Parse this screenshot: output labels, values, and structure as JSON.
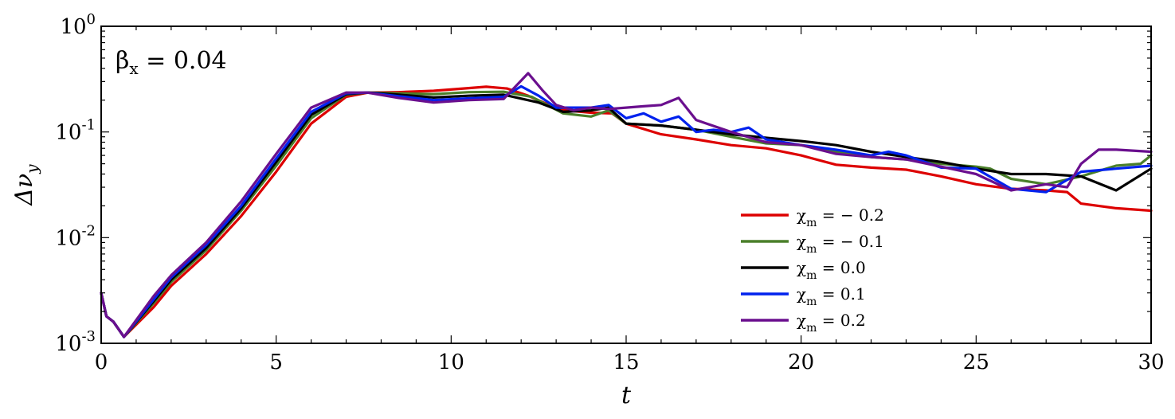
{
  "chart_data": {
    "type": "line",
    "title": "",
    "xlabel": "t",
    "ylabel": "Δν_y",
    "xlim": [
      0,
      30
    ],
    "ylim": [
      0.001,
      1
    ],
    "yscale": "log",
    "grid": false,
    "legend_position": "lower-right",
    "annotation": {
      "text": "β_x = 0.04"
    },
    "x_ticks": [
      {
        "value": 0,
        "label": "0"
      },
      {
        "value": 5,
        "label": "5"
      },
      {
        "value": 10,
        "label": "10"
      },
      {
        "value": 15,
        "label": "15"
      },
      {
        "value": 20,
        "label": "20"
      },
      {
        "value": 25,
        "label": "25"
      },
      {
        "value": 30,
        "label": "30"
      }
    ],
    "y_ticks": [
      {
        "value": 0.001,
        "base": "10",
        "exp": "-3"
      },
      {
        "value": 0.01,
        "base": "10",
        "exp": "-2"
      },
      {
        "value": 0.1,
        "base": "10",
        "exp": "-1"
      },
      {
        "value": 1,
        "base": "10",
        "exp": "0"
      }
    ],
    "series": [
      {
        "name": "χ_m = − 0.2",
        "color": "#dd0000",
        "points": [
          [
            0,
            0.003
          ],
          [
            0.15,
            0.0018
          ],
          [
            0.35,
            0.0016
          ],
          [
            0.65,
            0.00115
          ],
          [
            1.5,
            0.0022
          ],
          [
            2,
            0.0035
          ],
          [
            3,
            0.007
          ],
          [
            4,
            0.016
          ],
          [
            5,
            0.042
          ],
          [
            6,
            0.12
          ],
          [
            7,
            0.215
          ],
          [
            7.6,
            0.235
          ],
          [
            8.5,
            0.238
          ],
          [
            9.5,
            0.245
          ],
          [
            10.5,
            0.26
          ],
          [
            11,
            0.268
          ],
          [
            11.6,
            0.258
          ],
          [
            12.2,
            0.22
          ],
          [
            12.8,
            0.18
          ],
          [
            13.3,
            0.16
          ],
          [
            14,
            0.152
          ],
          [
            14.6,
            0.15
          ],
          [
            15,
            0.12
          ],
          [
            16,
            0.095
          ],
          [
            17,
            0.085
          ],
          [
            18,
            0.075
          ],
          [
            19,
            0.07
          ],
          [
            20,
            0.06
          ],
          [
            21,
            0.049
          ],
          [
            22,
            0.046
          ],
          [
            23,
            0.044
          ],
          [
            24,
            0.038
          ],
          [
            25,
            0.032
          ],
          [
            26,
            0.029
          ],
          [
            27,
            0.028
          ],
          [
            27.6,
            0.027
          ],
          [
            28,
            0.021
          ],
          [
            29,
            0.019
          ],
          [
            30,
            0.018
          ]
        ]
      },
      {
        "name": "χ_m = − 0.1",
        "color": "#4a7f2a",
        "points": [
          [
            0,
            0.003
          ],
          [
            0.15,
            0.0018
          ],
          [
            0.35,
            0.0016
          ],
          [
            0.65,
            0.00115
          ],
          [
            1.5,
            0.0024
          ],
          [
            2,
            0.0038
          ],
          [
            3,
            0.0076
          ],
          [
            4,
            0.018
          ],
          [
            5,
            0.048
          ],
          [
            6,
            0.135
          ],
          [
            7,
            0.225
          ],
          [
            7.6,
            0.236
          ],
          [
            8.5,
            0.232
          ],
          [
            9.5,
            0.228
          ],
          [
            10.5,
            0.238
          ],
          [
            11.5,
            0.24
          ],
          [
            12.3,
            0.215
          ],
          [
            13.2,
            0.15
          ],
          [
            14,
            0.14
          ],
          [
            14.5,
            0.16
          ],
          [
            15,
            0.12
          ],
          [
            16,
            0.115
          ],
          [
            17,
            0.105
          ],
          [
            18,
            0.09
          ],
          [
            19,
            0.078
          ],
          [
            20,
            0.075
          ],
          [
            21,
            0.065
          ],
          [
            22,
            0.058
          ],
          [
            23,
            0.055
          ],
          [
            24,
            0.05
          ],
          [
            25,
            0.047
          ],
          [
            25.4,
            0.045
          ],
          [
            26,
            0.036
          ],
          [
            27,
            0.032
          ],
          [
            28,
            0.038
          ],
          [
            29,
            0.048
          ],
          [
            29.7,
            0.05
          ],
          [
            30,
            0.06
          ]
        ]
      },
      {
        "name": "χ_m = 0.0",
        "color": "#000000",
        "points": [
          [
            0,
            0.003
          ],
          [
            0.15,
            0.0018
          ],
          [
            0.35,
            0.0016
          ],
          [
            0.65,
            0.00115
          ],
          [
            1.5,
            0.0025
          ],
          [
            2,
            0.004
          ],
          [
            3,
            0.008
          ],
          [
            4,
            0.019
          ],
          [
            5,
            0.052
          ],
          [
            6,
            0.145
          ],
          [
            7,
            0.228
          ],
          [
            7.6,
            0.236
          ],
          [
            8.5,
            0.225
          ],
          [
            9.5,
            0.212
          ],
          [
            10.5,
            0.22
          ],
          [
            11.5,
            0.225
          ],
          [
            12.5,
            0.19
          ],
          [
            13.2,
            0.155
          ],
          [
            14,
            0.16
          ],
          [
            14.5,
            0.17
          ],
          [
            15,
            0.12
          ],
          [
            16,
            0.115
          ],
          [
            17,
            0.105
          ],
          [
            18,
            0.095
          ],
          [
            19,
            0.088
          ],
          [
            20,
            0.082
          ],
          [
            21,
            0.075
          ],
          [
            22,
            0.065
          ],
          [
            23,
            0.058
          ],
          [
            24,
            0.052
          ],
          [
            25,
            0.045
          ],
          [
            26,
            0.04
          ],
          [
            27,
            0.04
          ],
          [
            28,
            0.038
          ],
          [
            29,
            0.028
          ],
          [
            30,
            0.045
          ]
        ]
      },
      {
        "name": "χ_m = 0.1",
        "color": "#0022ee",
        "points": [
          [
            0,
            0.003
          ],
          [
            0.15,
            0.0018
          ],
          [
            0.35,
            0.0016
          ],
          [
            0.65,
            0.00115
          ],
          [
            1.5,
            0.0026
          ],
          [
            2,
            0.0042
          ],
          [
            3,
            0.0085
          ],
          [
            4,
            0.02
          ],
          [
            5,
            0.056
          ],
          [
            6,
            0.155
          ],
          [
            7,
            0.232
          ],
          [
            7.6,
            0.236
          ],
          [
            8.5,
            0.218
          ],
          [
            9.5,
            0.2
          ],
          [
            10.5,
            0.208
          ],
          [
            11.5,
            0.215
          ],
          [
            12,
            0.27
          ],
          [
            12.5,
            0.22
          ],
          [
            13,
            0.17
          ],
          [
            14,
            0.17
          ],
          [
            14.5,
            0.18
          ],
          [
            15,
            0.135
          ],
          [
            15.5,
            0.15
          ],
          [
            16,
            0.125
          ],
          [
            16.5,
            0.14
          ],
          [
            17,
            0.1
          ],
          [
            17.5,
            0.105
          ],
          [
            18,
            0.1
          ],
          [
            18.5,
            0.11
          ],
          [
            19,
            0.085
          ],
          [
            20,
            0.075
          ],
          [
            21,
            0.068
          ],
          [
            22,
            0.06
          ],
          [
            22.5,
            0.065
          ],
          [
            23,
            0.06
          ],
          [
            24,
            0.046
          ],
          [
            25,
            0.045
          ],
          [
            26,
            0.029
          ],
          [
            27,
            0.027
          ],
          [
            28,
            0.042
          ],
          [
            29,
            0.045
          ],
          [
            30,
            0.048
          ]
        ]
      },
      {
        "name": "χ_m = 0.2",
        "color": "#6a0f8e",
        "points": [
          [
            0,
            0.003
          ],
          [
            0.15,
            0.0018
          ],
          [
            0.35,
            0.0016
          ],
          [
            0.65,
            0.00115
          ],
          [
            1.5,
            0.0028
          ],
          [
            2,
            0.0044
          ],
          [
            3,
            0.009
          ],
          [
            4,
            0.022
          ],
          [
            5,
            0.062
          ],
          [
            6,
            0.17
          ],
          [
            7,
            0.236
          ],
          [
            7.6,
            0.236
          ],
          [
            8.5,
            0.21
          ],
          [
            9.5,
            0.19
          ],
          [
            10.5,
            0.2
          ],
          [
            11.5,
            0.205
          ],
          [
            12.2,
            0.36
          ],
          [
            12.6,
            0.25
          ],
          [
            13,
            0.18
          ],
          [
            13.5,
            0.16
          ],
          [
            14,
            0.17
          ],
          [
            14.5,
            0.165
          ],
          [
            15,
            0.17
          ],
          [
            15.5,
            0.175
          ],
          [
            16,
            0.18
          ],
          [
            16.5,
            0.21
          ],
          [
            17,
            0.13
          ],
          [
            18,
            0.1
          ],
          [
            19,
            0.08
          ],
          [
            20,
            0.075
          ],
          [
            21,
            0.062
          ],
          [
            22,
            0.058
          ],
          [
            23,
            0.055
          ],
          [
            24,
            0.047
          ],
          [
            25,
            0.04
          ],
          [
            26,
            0.028
          ],
          [
            27,
            0.032
          ],
          [
            27.6,
            0.03
          ],
          [
            28,
            0.05
          ],
          [
            28.5,
            0.068
          ],
          [
            29,
            0.068
          ],
          [
            30,
            0.065
          ]
        ]
      }
    ]
  }
}
